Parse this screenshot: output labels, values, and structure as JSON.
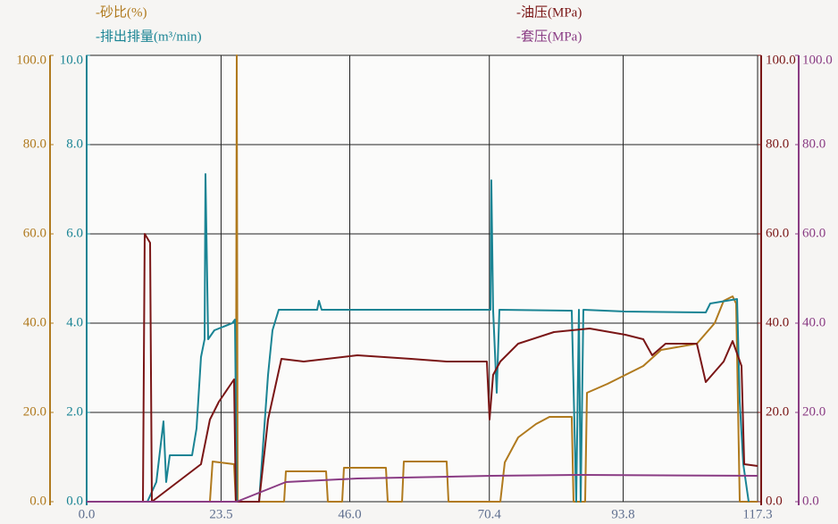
{
  "chart_data": {
    "type": "line",
    "xlim": [
      0,
      117.3
    ],
    "xticks": [
      {
        "value": 0,
        "label": "0.0"
      },
      {
        "value": 23.5,
        "label": "23.5"
      },
      {
        "value": 46.0,
        "label": "46.0"
      },
      {
        "value": 70.4,
        "label": "70.4"
      },
      {
        "value": 93.8,
        "label": "93.8"
      },
      {
        "value": 117.3,
        "label": "117.3"
      }
    ],
    "ylim": [
      0,
      100
    ],
    "yticks": [
      {
        "value": 0,
        "label": "0.0"
      },
      {
        "value": 20,
        "label": "20.0"
      },
      {
        "value": 40,
        "label": "40.0"
      },
      {
        "value": 60,
        "label": "60.0"
      },
      {
        "value": 80,
        "label": "80.0"
      },
      {
        "value": 100,
        "label": "100.0"
      }
    ],
    "y2lim": [
      0,
      10
    ],
    "y2ticks": [
      {
        "value": 0,
        "label": "0.0"
      },
      {
        "value": 2,
        "label": "2.0"
      },
      {
        "value": 4,
        "label": "4.0"
      },
      {
        "value": 6,
        "label": "6.0"
      },
      {
        "value": 8,
        "label": "8.0"
      },
      {
        "value": 10,
        "label": "10.0"
      }
    ],
    "y3lim": [
      0,
      100
    ],
    "y3ticks": [
      {
        "value": 0,
        "label": "0.0"
      },
      {
        "value": 20,
        "label": "20.0"
      },
      {
        "value": 40,
        "label": "40.0"
      },
      {
        "value": 60,
        "label": "60.0"
      },
      {
        "value": 80,
        "label": "80.0"
      },
      {
        "value": 100,
        "label": "100.0"
      }
    ],
    "y4lim": [
      0,
      100
    ],
    "y4ticks": [
      {
        "value": 0,
        "label": "0.0"
      },
      {
        "value": 20,
        "label": "20.0"
      },
      {
        "value": 40,
        "label": "40.0"
      },
      {
        "value": 60,
        "label": "60.0"
      },
      {
        "value": 80,
        "label": "80.0"
      },
      {
        "value": 100,
        "label": "100.0"
      }
    ],
    "grid": true,
    "series": [
      {
        "name": "-砂比(%)",
        "color": "#b07a1e",
        "axis": "y",
        "x": [
          0,
          21.55,
          22.02,
          25.77,
          26.08,
          26.24,
          26.4,
          34.52,
          34.83,
          41.86,
          42.17,
          44.67,
          44.98,
          52.32,
          52.64,
          55.14,
          55.45,
          62.94,
          63.26,
          72.32,
          73.1,
          75.44,
          78.56,
          80.91,
          84.81,
          85.12,
          87.15,
          87.47,
          91.06,
          94.18,
          97.31,
          100.43,
          106.68,
          109.8,
          111.37,
          112.93,
          113.55,
          114.18,
          117.3
        ],
        "values": [
          0,
          0,
          9,
          8.4,
          0,
          100,
          0,
          0,
          6.8,
          6.8,
          0,
          0,
          7.6,
          7.6,
          0,
          0,
          9,
          9,
          0,
          0,
          8.8,
          14.4,
          17.4,
          19,
          19,
          0,
          0,
          24.4,
          26.4,
          28.4,
          30.4,
          34,
          35.4,
          40,
          45,
          46,
          44.4,
          0,
          0
        ]
      },
      {
        "name": "-排出排量(m³/min)",
        "color": "#1a8494",
        "axis": "y2",
        "x": [
          0,
          10.62,
          12.18,
          13.43,
          13.9,
          14.53,
          18.43,
          19.21,
          19.99,
          20.62,
          20.77,
          21.24,
          22.33,
          25.46,
          25.93,
          26.24,
          30.14,
          31.71,
          32.49,
          33.58,
          40.3,
          40.61,
          41.08,
          69.97,
          70.6,
          70.75,
          71.06,
          71.69,
          72.16,
          84.81,
          85.59,
          86.06,
          86.37,
          86.84,
          94.18,
          108.24,
          109.02,
          113.71,
          114.18,
          114.8,
          115.74
        ],
        "values": [
          0,
          0,
          0.44,
          1.8,
          0.44,
          1.04,
          1.04,
          1.64,
          3.24,
          3.64,
          7.34,
          3.64,
          3.84,
          4.0,
          4.08,
          0,
          0,
          2.84,
          3.84,
          4.3,
          4.3,
          4.5,
          4.3,
          4.3,
          4.3,
          7.2,
          4.3,
          2.44,
          4.3,
          4.28,
          0,
          4.3,
          0,
          4.3,
          4.26,
          4.24,
          4.44,
          4.54,
          2.24,
          0.84,
          0
        ]
      },
      {
        "name": "-油压(MPa)",
        "color": "#7a1616",
        "axis": "y3",
        "x": [
          0,
          9.84,
          10.15,
          11.09,
          11.4,
          19.99,
          21.55,
          23.12,
          25.77,
          26.08,
          30.14,
          31.71,
          34.05,
          37.95,
          47.33,
          56.7,
          62.94,
          69.97,
          70.44,
          71.06,
          72.32,
          75.44,
          81.69,
          87.93,
          94.18,
          97.31,
          98.87,
          101.21,
          106.68,
          108.24,
          111.37,
          112.93,
          114.49,
          114.96,
          117.3
        ],
        "values": [
          0,
          0,
          60,
          58,
          0,
          8.4,
          18.4,
          22.4,
          27.4,
          0,
          0,
          18.4,
          32,
          31.4,
          32.8,
          32,
          31.4,
          31.4,
          18.4,
          28.4,
          31.4,
          35.4,
          38,
          38.8,
          37.4,
          36.4,
          32.8,
          35.4,
          35.4,
          26.8,
          31.4,
          36,
          30.4,
          8.4,
          8
        ]
      },
      {
        "name": "-套压(MPa)",
        "color": "#8a3c84",
        "axis": "y4",
        "x": [
          0,
          26.24,
          30.14,
          34.83,
          47.33,
          70.75,
          86.37,
          117.3
        ],
        "values": [
          0,
          0,
          2,
          4.4,
          5.2,
          5.8,
          6,
          5.8
        ]
      }
    ]
  }
}
